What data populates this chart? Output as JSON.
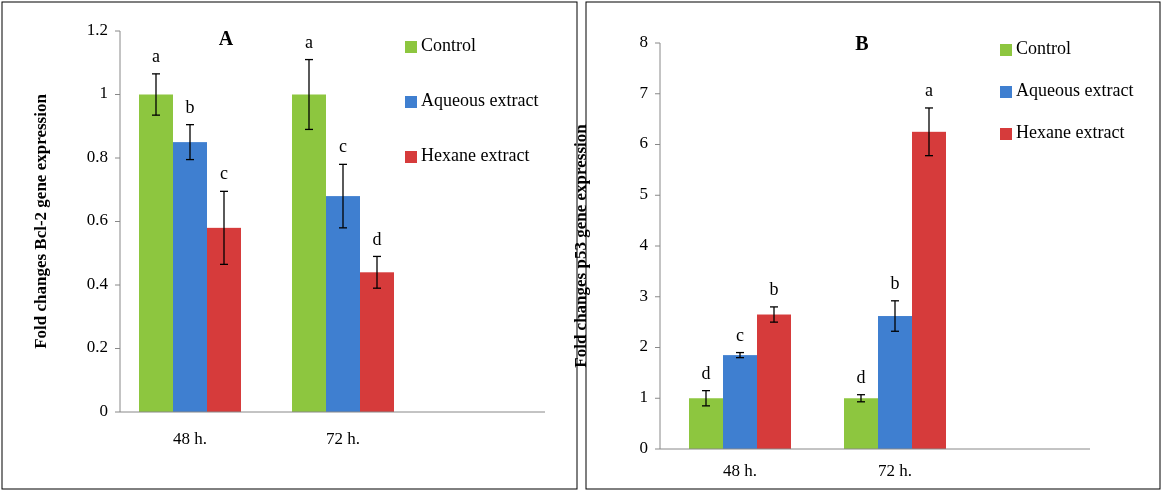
{
  "chart_data": [
    {
      "type": "bar",
      "title": "A",
      "ylabel": "Fold changes Bcl-2 gene expression",
      "categories": [
        "48 h.",
        "72 h."
      ],
      "series": [
        {
          "name": "Control",
          "color": "#8dc63f",
          "values": [
            1,
            1
          ],
          "errors": [
            0.065,
            0.11
          ]
        },
        {
          "name": "Aqueous extract",
          "color": "#3f7fd0",
          "values": [
            0.85,
            0.68
          ],
          "errors": [
            0.055,
            0.1
          ]
        },
        {
          "name": "Hexane extract",
          "color": "#d63b3b",
          "values": [
            0.58,
            0.44
          ],
          "errors": [
            0.115,
            0.05
          ]
        }
      ],
      "ylim": [
        0,
        1.2
      ],
      "yticks": [
        0,
        0.2,
        0.4,
        0.6,
        0.8,
        1,
        1.2
      ],
      "legend": "top right",
      "annotations": [
        "a",
        "b",
        "c",
        "a",
        "c",
        "d"
      ]
    },
    {
      "type": "bar",
      "title": "B",
      "ylabel": "Fold changes p53 gene expression",
      "categories": [
        "48 h.",
        "72 h."
      ],
      "series": [
        {
          "name": "Control",
          "color": "#8dc63f",
          "values": [
            1,
            1
          ],
          "errors": [
            0.15,
            0.07
          ]
        },
        {
          "name": "Aqueous extract",
          "color": "#3f7fd0",
          "values": [
            1.85,
            2.62
          ],
          "errors": [
            0.05,
            0.3
          ]
        },
        {
          "name": "Hexane extract",
          "color": "#d63b3b",
          "values": [
            2.65,
            6.25
          ],
          "errors": [
            0.15,
            0.47
          ]
        }
      ],
      "ylim": [
        0,
        8
      ],
      "yticks": [
        0,
        1,
        2,
        3,
        4,
        5,
        6,
        7,
        8
      ],
      "legend": "top right",
      "annotations": [
        "d",
        "c",
        "b",
        "d",
        "b",
        "a"
      ]
    }
  ]
}
